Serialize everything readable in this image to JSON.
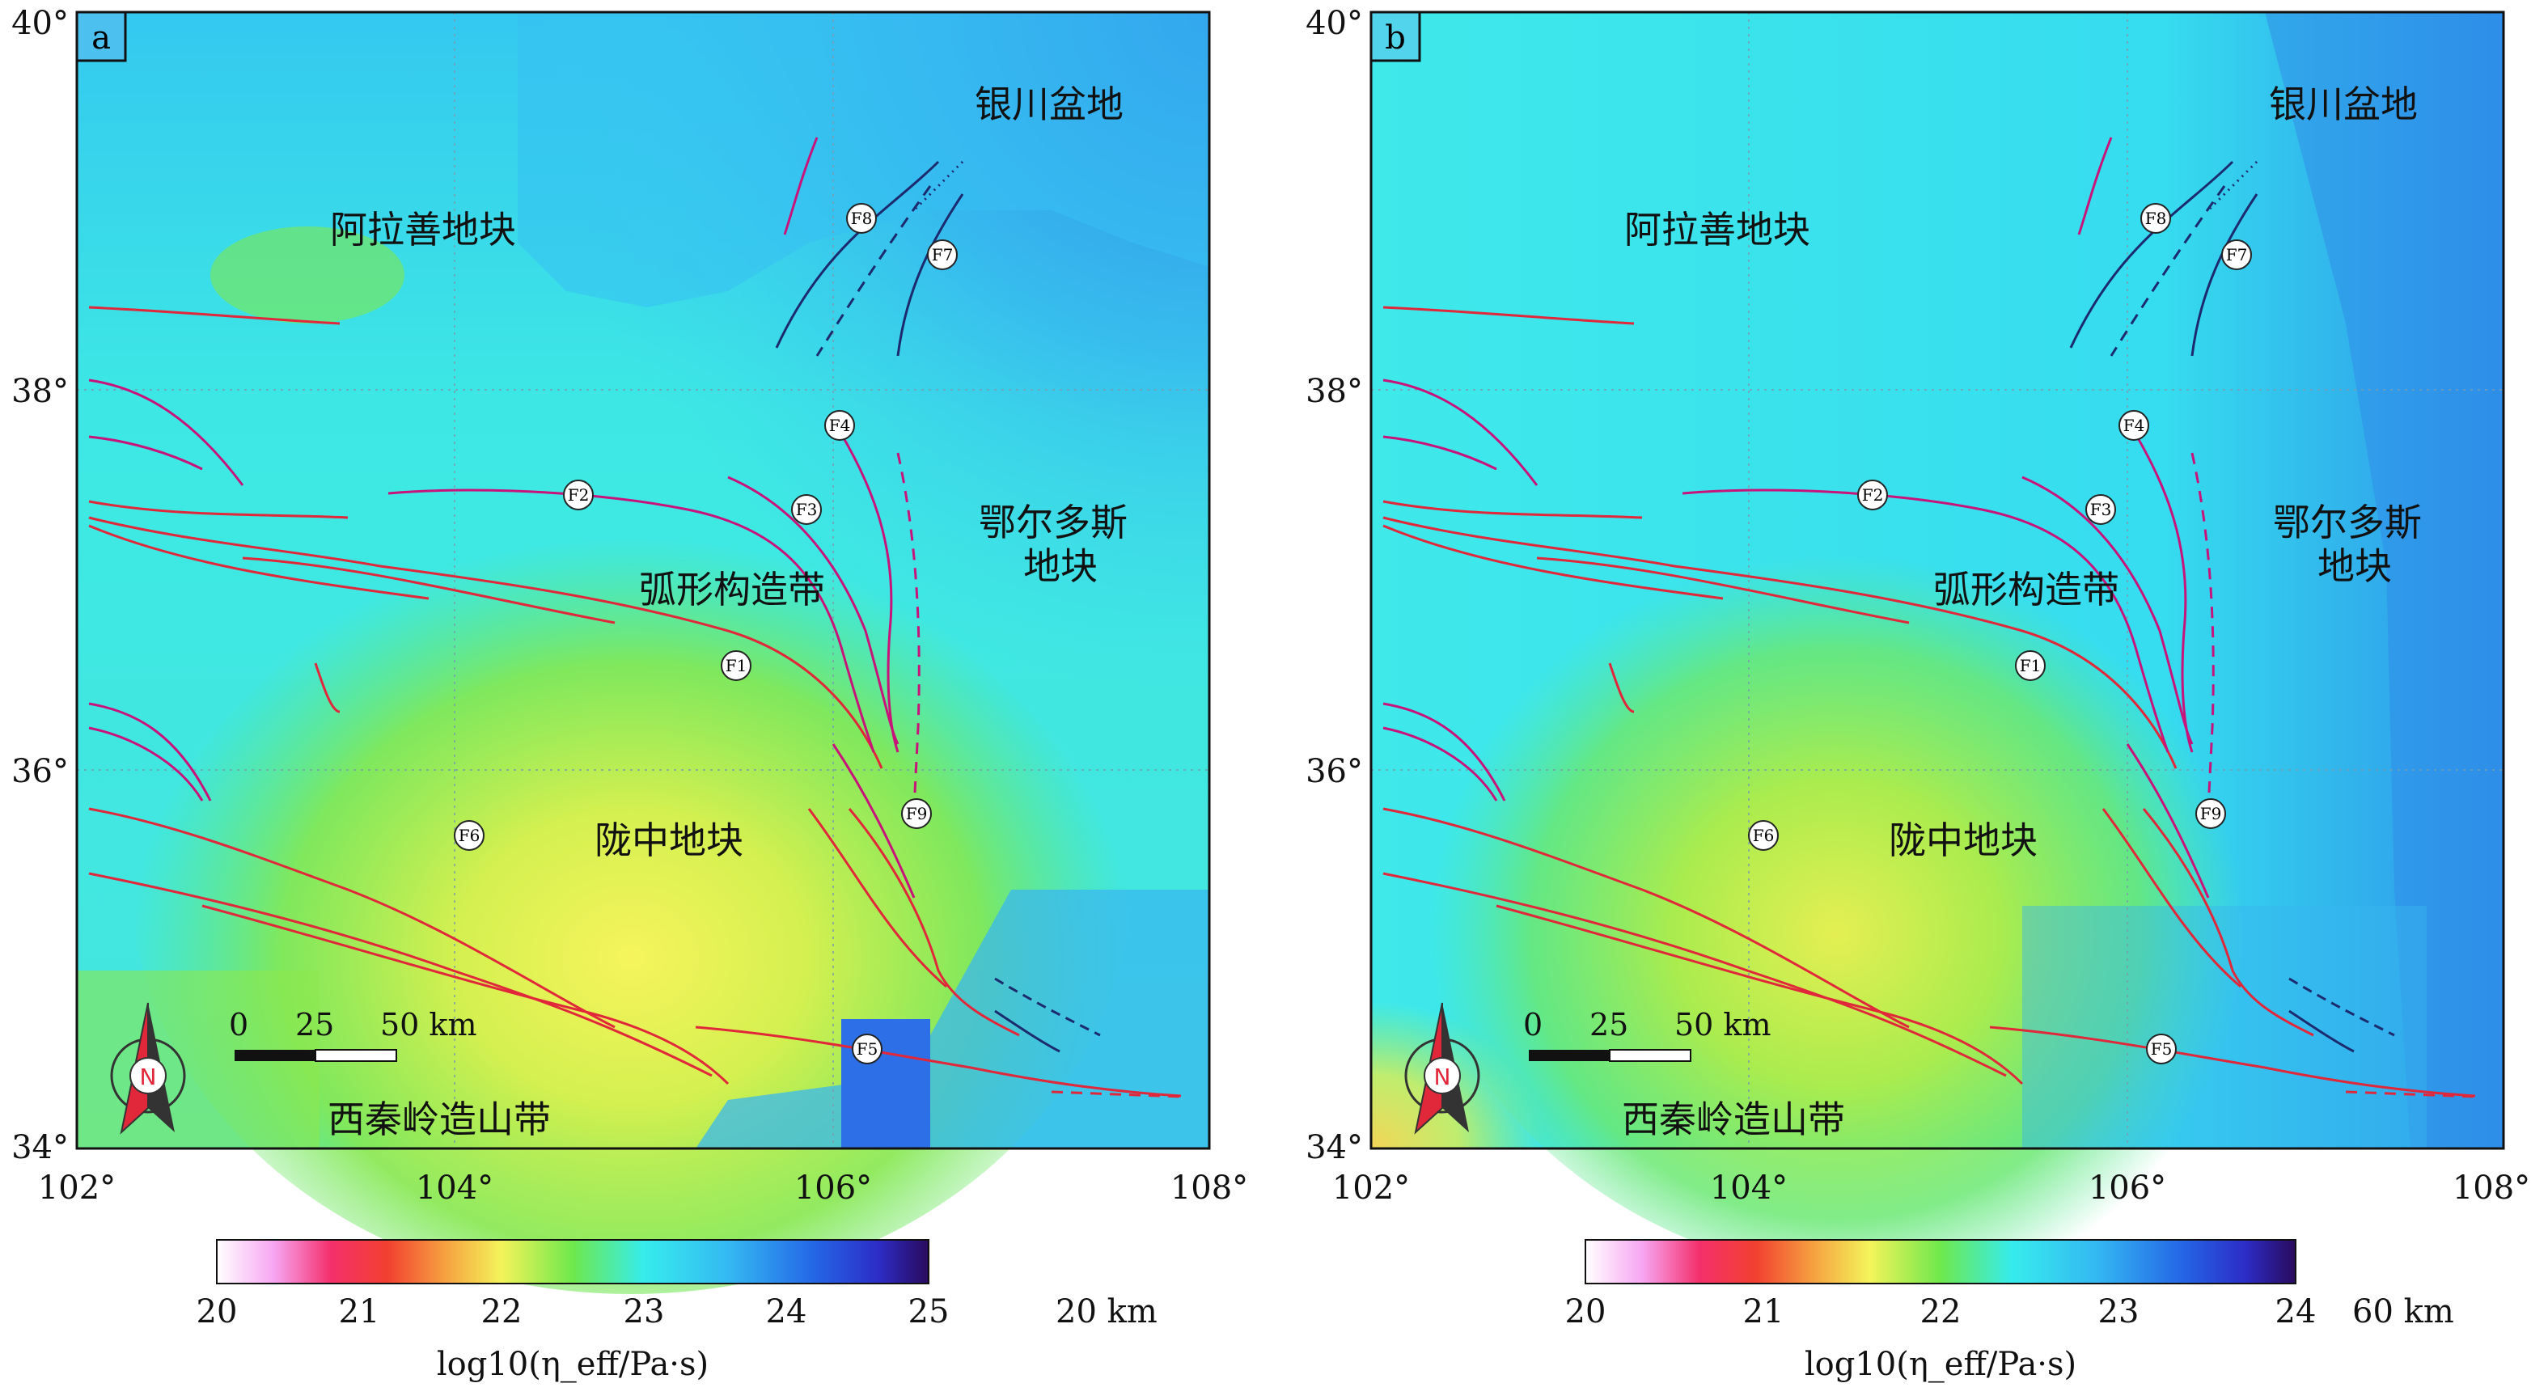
{
  "panels": [
    {
      "letter": "a",
      "depth_label": "20 km",
      "colorbar_ticks": [
        "20",
        "21",
        "22",
        "23",
        "24",
        "25"
      ],
      "colorbar_title": "log10(η_eff/Pa·s)",
      "region_labels": {
        "alashan": "阿拉善地块",
        "yinchuan": "银川盆地",
        "ordos_1": "鄂尔多斯",
        "ordos_2": "地块",
        "arc_belt": "弧形构造带",
        "longzhong": "陇中地块",
        "qinling": "西秦岭造山带"
      }
    },
    {
      "letter": "b",
      "depth_label": "60 km",
      "colorbar_ticks": [
        "20",
        "21",
        "22",
        "23",
        "24"
      ],
      "colorbar_title": "log10(η_eff/Pa·s)",
      "region_labels": {
        "alashan": "阿拉善地块",
        "yinchuan": "银川盆地",
        "ordos_1": "鄂尔多斯",
        "ordos_2": "地块",
        "arc_belt": "弧形构造带",
        "longzhong": "陇中地块",
        "qinling": "西秦岭造山带"
      }
    }
  ],
  "axes": {
    "lat_ticks": [
      "40°",
      "38°",
      "36°",
      "34°"
    ],
    "lon_ticks": [
      "102°",
      "104°",
      "106°",
      "108°"
    ]
  },
  "fault_labels": [
    "F1",
    "F2",
    "F3",
    "F4",
    "F5",
    "F6",
    "F7",
    "F8",
    "F9"
  ],
  "scale_bar": {
    "ticks": [
      "0",
      "25",
      "50 km"
    ]
  },
  "compass": {
    "label": "N"
  },
  "colors": {
    "ocean_blue": "#2a7fe8",
    "cyan": "#33e6f2",
    "green": "#7fe84d",
    "yellow": "#f4f45a",
    "fault_red": "#e0283a",
    "fault_magenta": "#c8147a",
    "fault_navy": "#1c2a6e"
  }
}
